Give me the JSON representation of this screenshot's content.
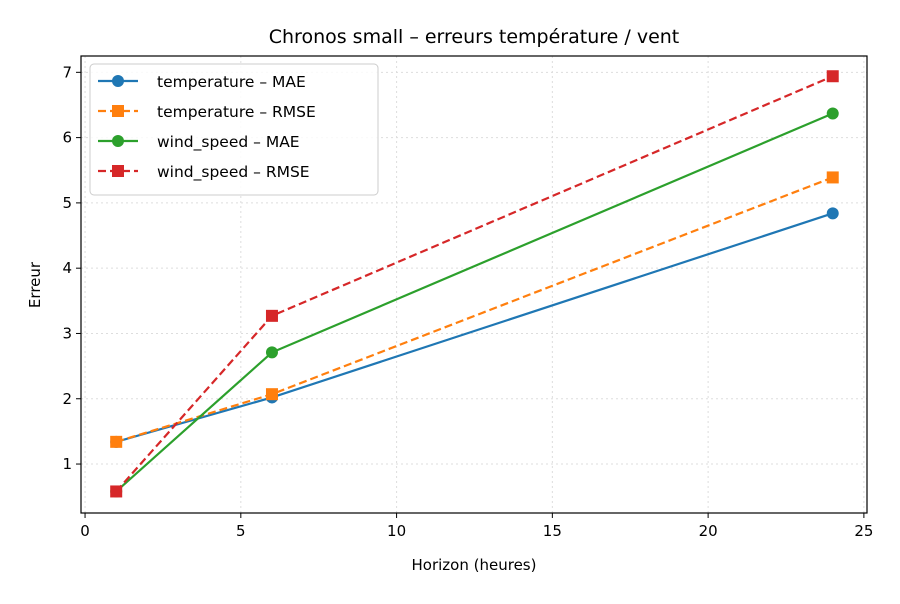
{
  "chart_data": {
    "type": "line",
    "title": "Chronos small – erreurs température / vent",
    "xlabel": "Horizon (heures)",
    "ylabel": "Erreur",
    "x": [
      1,
      6,
      24
    ],
    "xlim": [
      -0.13,
      25.1
    ],
    "ylim": [
      0.25,
      7.25
    ],
    "xticks": [
      0,
      5,
      10,
      15,
      20,
      25
    ],
    "yticks": [
      1,
      2,
      3,
      4,
      5,
      6,
      7
    ],
    "grid": true,
    "legend_position": "top-left",
    "series": [
      {
        "name": "temperature – MAE",
        "values": [
          1.34,
          2.02,
          4.84
        ],
        "color": "#1f77b4",
        "dash": false,
        "marker": "circle"
      },
      {
        "name": "temperature – RMSE",
        "values": [
          1.34,
          2.07,
          5.39
        ],
        "color": "#ff7f0e",
        "dash": true,
        "marker": "square"
      },
      {
        "name": "wind_speed – MAE",
        "values": [
          0.58,
          2.71,
          6.37
        ],
        "color": "#2ca02c",
        "dash": false,
        "marker": "circle"
      },
      {
        "name": "wind_speed – RMSE",
        "values": [
          0.58,
          3.27,
          6.94
        ],
        "color": "#d62728",
        "dash": true,
        "marker": "square"
      }
    ]
  }
}
